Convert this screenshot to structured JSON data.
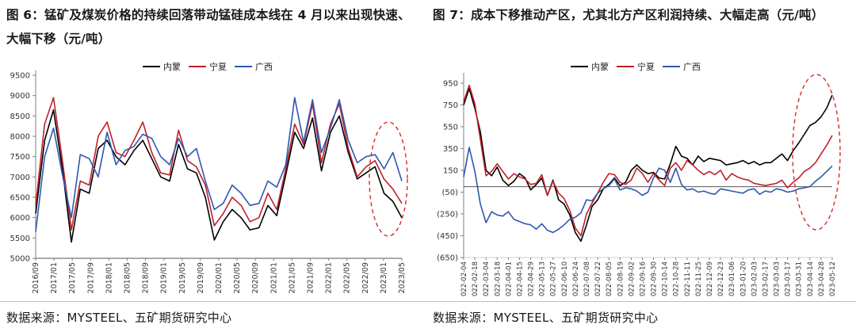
{
  "figures": [
    {
      "title": "图 6：锰矿及煤炭价格的持续回落带动锰硅成本线在 4 月以来出现快速、大幅下移（元/吨）",
      "source": "数据来源：MYSTEEL、五矿期货研究中心"
    },
    {
      "title": "图 7：成本下移推动产区，尤其北方产区利润持续、大幅走高（元/吨）",
      "source": "数据来源：MYSTEEL、五矿期货研究中心"
    }
  ],
  "chart_data": [
    {
      "type": "line",
      "title": "",
      "xlabel": "",
      "ylabel": "",
      "ylim": [
        5000,
        9500
      ],
      "y_ticks": [
        "5000",
        "5500",
        "6000",
        "6500",
        "7000",
        "7500",
        "8000",
        "8500",
        "9000",
        "9500"
      ],
      "x_ticks": [
        "2016/09",
        "2017/01",
        "2017/05",
        "2017/09",
        "2018/01",
        "2018/05",
        "2018/09",
        "2019/01",
        "2019/05",
        "2019/09",
        "2020/01",
        "2020/05",
        "2020/09",
        "2021/01",
        "2021/05",
        "2021/09",
        "2022/01",
        "2022/05",
        "2022/09",
        "2023/01",
        "2023/05"
      ],
      "grid": false,
      "legend": "top-center",
      "x": [
        0,
        0.5,
        1,
        1.5,
        2,
        2.5,
        3,
        3.5,
        4,
        4.5,
        5,
        5.5,
        6,
        6.5,
        7,
        7.5,
        8,
        8.5,
        9,
        9.5,
        10,
        10.5,
        11,
        11.5,
        12,
        12.5,
        13,
        13.5,
        14,
        14.5,
        15,
        15.5,
        16,
        16.5,
        17,
        17.5,
        18,
        18.5,
        19,
        19.5,
        20,
        20.5
      ],
      "series": [
        {
          "name": "内蒙",
          "color": "#000000",
          "values": [
            6100,
            7900,
            8650,
            7200,
            5400,
            6700,
            6600,
            7700,
            7900,
            7500,
            7300,
            7650,
            7900,
            7450,
            7000,
            6900,
            7800,
            7200,
            7100,
            6500,
            5450,
            5900,
            6200,
            6000,
            5700,
            5750,
            6300,
            6050,
            7050,
            8100,
            7700,
            8450,
            7150,
            8100,
            8500,
            7600,
            6950,
            7100,
            7250,
            6600,
            6400,
            6000
          ]
        },
        {
          "name": "宁夏",
          "color": "#c0202a",
          "values": [
            6300,
            8300,
            8950,
            7400,
            5700,
            6900,
            6800,
            8000,
            8350,
            7600,
            7500,
            7900,
            8350,
            7600,
            7100,
            7050,
            8150,
            7400,
            7250,
            6800,
            5800,
            6100,
            6500,
            6300,
            5900,
            6000,
            6600,
            6200,
            7200,
            8300,
            7800,
            8800,
            7350,
            8300,
            8800,
            7700,
            7000,
            7250,
            7400,
            6950,
            6700,
            6350
          ]
        },
        {
          "name": "广西",
          "color": "#2f56b0",
          "values": [
            5650,
            7500,
            8200,
            7050,
            6000,
            7550,
            7450,
            7000,
            8100,
            7300,
            7650,
            7750,
            8050,
            7950,
            7500,
            7300,
            7950,
            7500,
            7700,
            6900,
            6200,
            6350,
            6800,
            6600,
            6300,
            6350,
            6900,
            6750,
            7300,
            8950,
            7850,
            8900,
            7600,
            8200,
            8900,
            7900,
            7350,
            7500,
            7550,
            7200,
            7600,
            6900
          ]
        }
      ]
    },
    {
      "type": "line",
      "title": "",
      "xlabel": "",
      "ylabel": "",
      "ylim": [
        -650,
        1000
      ],
      "y_ticks": [
        "950",
        "750",
        "550",
        "350",
        "150",
        "(50)",
        "(250)",
        "(450)",
        "(650)"
      ],
      "x_ticks": [
        "2022-02-04",
        "2022-02-18",
        "2022-03-04",
        "2022-03-18",
        "2022-04-01",
        "2022-04-15",
        "2022-04-29",
        "2022-05-13",
        "2022-05-27",
        "2022-06-10",
        "2022-06-24",
        "2022-07-08",
        "2022-07-22",
        "2022-08-05",
        "2022-08-19",
        "2022-09-02",
        "2022-09-16",
        "2022-09-30",
        "2022-10-14",
        "2022-10-28",
        "2022-11-11",
        "2022-11-25",
        "2022-12-09",
        "2022-12-23",
        "2023-01-06",
        "2023-01-20",
        "2023-02-03",
        "2023-02-17",
        "2023-03-03",
        "2023-03-17",
        "2023-03-31",
        "2023-04-14",
        "2023-04-28",
        "2023-05-12"
      ],
      "grid": false,
      "legend": "top-center",
      "x": [
        0,
        0.5,
        1,
        1.5,
        2,
        2.5,
        3,
        3.5,
        4,
        4.5,
        5,
        5.5,
        6,
        6.5,
        7,
        7.5,
        8,
        8.5,
        9,
        9.5,
        10,
        10.5,
        11,
        11.5,
        12,
        12.5,
        13,
        13.5,
        14,
        14.5,
        15,
        15.5,
        16,
        16.5,
        17,
        17.5,
        18,
        18.5,
        19,
        19.5,
        20,
        20.5,
        21,
        21.5,
        22,
        22.5,
        23,
        23.5,
        24,
        24.5,
        25,
        25.5,
        26,
        26.5,
        27,
        27.5,
        28,
        28.5,
        29,
        29.5,
        30,
        30.5,
        31,
        31.5,
        32,
        32.5,
        33
      ],
      "series": [
        {
          "name": "内蒙",
          "color": "#000000",
          "values": [
            750,
            900,
            720,
            500,
            150,
            100,
            180,
            60,
            10,
            50,
            120,
            80,
            -30,
            20,
            80,
            -80,
            60,
            -120,
            -160,
            -260,
            -420,
            -500,
            -350,
            -180,
            -120,
            -20,
            20,
            80,
            10,
            40,
            150,
            200,
            150,
            120,
            130,
            80,
            70,
            210,
            370,
            280,
            260,
            200,
            280,
            230,
            260,
            250,
            240,
            200,
            210,
            220,
            240,
            210,
            230,
            200,
            220,
            220,
            260,
            300,
            240,
            330,
            400,
            480,
            560,
            590,
            640,
            720,
            840
          ]
        },
        {
          "name": "宁夏",
          "color": "#c0202a",
          "values": [
            780,
            930,
            760,
            430,
            100,
            140,
            210,
            140,
            70,
            120,
            90,
            70,
            20,
            30,
            110,
            -80,
            50,
            -60,
            -110,
            -220,
            -380,
            -450,
            -250,
            -150,
            -60,
            40,
            120,
            110,
            40,
            20,
            60,
            170,
            120,
            40,
            120,
            60,
            10,
            170,
            220,
            150,
            240,
            200,
            150,
            110,
            140,
            110,
            150,
            60,
            120,
            90,
            70,
            60,
            30,
            20,
            10,
            20,
            30,
            60,
            -10,
            40,
            80,
            140,
            170,
            220,
            300,
            380,
            470
          ]
        },
        {
          "name": "广西",
          "color": "#2f56b0",
          "values": [
            90,
            360,
            140,
            -160,
            -330,
            -230,
            -260,
            -270,
            -230,
            -300,
            -320,
            -340,
            -350,
            -390,
            -340,
            -400,
            -420,
            -390,
            -350,
            -300,
            -280,
            -240,
            -120,
            -130,
            -60,
            -20,
            10,
            70,
            -30,
            -10,
            -20,
            -40,
            -80,
            -50,
            80,
            170,
            150,
            40,
            170,
            20,
            -30,
            -20,
            -50,
            -40,
            -60,
            -70,
            -20,
            -30,
            -40,
            -50,
            -60,
            -30,
            -20,
            -70,
            -40,
            -50,
            -20,
            -30,
            -50,
            -40,
            -20,
            -10,
            0,
            50,
            90,
            140,
            190
          ]
        }
      ]
    }
  ]
}
